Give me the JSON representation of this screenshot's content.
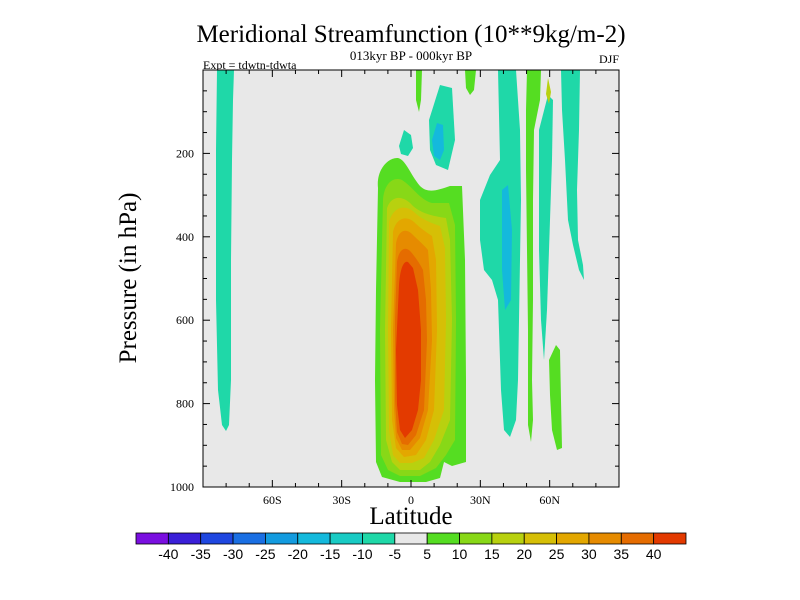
{
  "chart_data": {
    "type": "contour",
    "title": "Meridional Streamfunction (10**9kg/m-2)",
    "subtitle": "013kyr BP - 000kyr BP",
    "experiment": "Expt = tdwtn-tdwta",
    "season": "DJF",
    "xlabel": "Latitude",
    "ylabel": "Pressure (in hPa)",
    "xlim": [
      -90,
      90
    ],
    "ylim": [
      1000,
      0
    ],
    "x_ticks": [
      {
        "value": -60,
        "label": "60S"
      },
      {
        "value": -30,
        "label": "30S"
      },
      {
        "value": 0,
        "label": "0"
      },
      {
        "value": 30,
        "label": "30N"
      },
      {
        "value": 60,
        "label": "60N"
      }
    ],
    "y_ticks": [
      {
        "value": 200,
        "label": "200"
      },
      {
        "value": 400,
        "label": "400"
      },
      {
        "value": 600,
        "label": "600"
      },
      {
        "value": 800,
        "label": "800"
      },
      {
        "value": 1000,
        "label": "1000"
      }
    ],
    "colorbar": {
      "levels": [
        "-40",
        "-35",
        "-30",
        "-25",
        "-20",
        "-15",
        "-10",
        "-5",
        "5",
        "10",
        "15",
        "20",
        "25",
        "30",
        "35",
        "40"
      ],
      "colors": [
        "#7a0fe0",
        "#3a1fd8",
        "#1f47e0",
        "#1a6fe3",
        "#139bdf",
        "#14b9dc",
        "#19cbc4",
        "#1fd8a8",
        "#e8e8e8",
        "#55dd22",
        "#88d817",
        "#b8d10f",
        "#d6bf06",
        "#e3a700",
        "#e68b00",
        "#e56c00",
        "#e33a00"
      ]
    },
    "features": [
      {
        "name": "Main positive cell (southern tropics)",
        "lat_range": [
          -15,
          18
        ],
        "pressure_range": [
          230,
          990
        ],
        "max": 40
      },
      {
        "name": "Northern positive strips",
        "lat_range": [
          2,
          62
        ],
        "pressure_range": [
          20,
          940
        ],
        "max": 10
      },
      {
        "name": "Negative strips",
        "lat_range": [
          -80,
          73
        ],
        "pressure_range": [
          20,
          870
        ],
        "min": -10
      }
    ]
  }
}
